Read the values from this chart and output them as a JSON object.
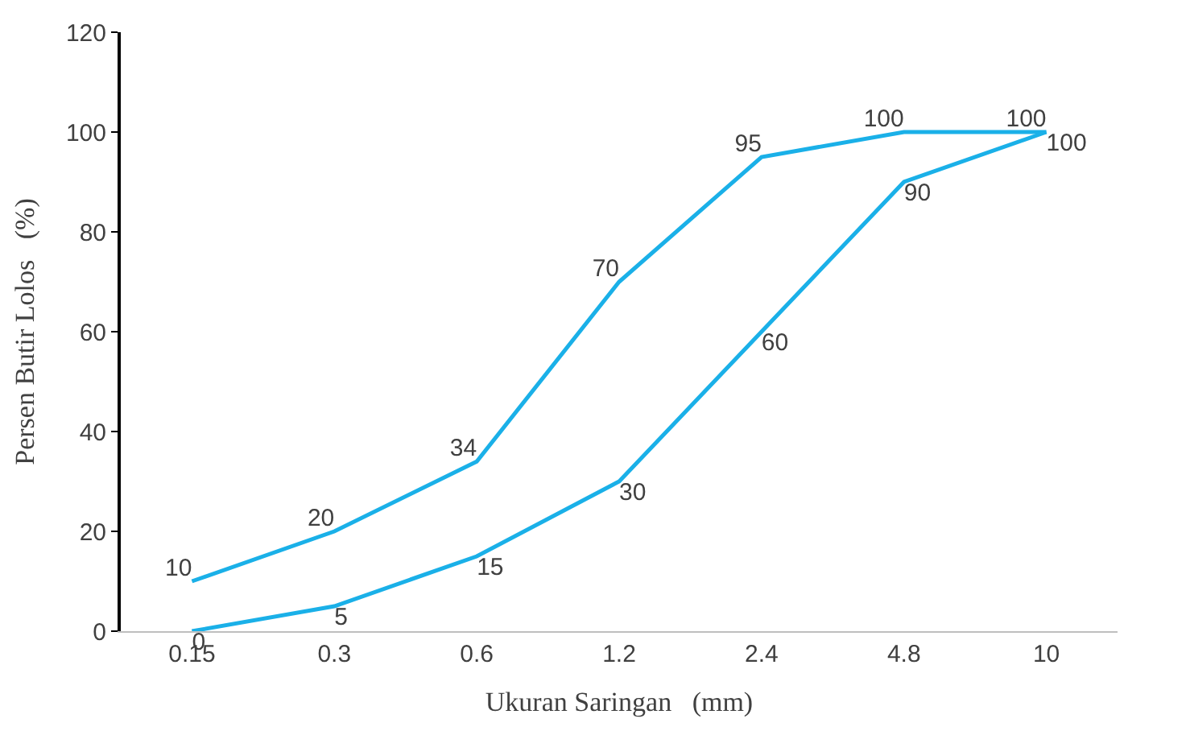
{
  "chart_data": {
    "type": "line",
    "xlabel": "Ukuran Saringan   (mm)",
    "ylabel": "Persen Butir Lolos   (%)",
    "categories": [
      "0.15",
      "0.3",
      "0.6",
      "1.2",
      "2.4",
      "4.8",
      "10"
    ],
    "series": [
      {
        "color": "#1ab0e8",
        "values": [
          10,
          20,
          34,
          70,
          95,
          100,
          100
        ]
      },
      {
        "color": "#1ab0e8",
        "values": [
          0,
          5,
          15,
          30,
          60,
          90,
          100
        ]
      }
    ],
    "ylim": [
      0,
      120
    ],
    "yticks": [
      0,
      20,
      40,
      60,
      80,
      100,
      120
    ],
    "marker": "none",
    "line_style": "solid",
    "data_labels": true
  }
}
